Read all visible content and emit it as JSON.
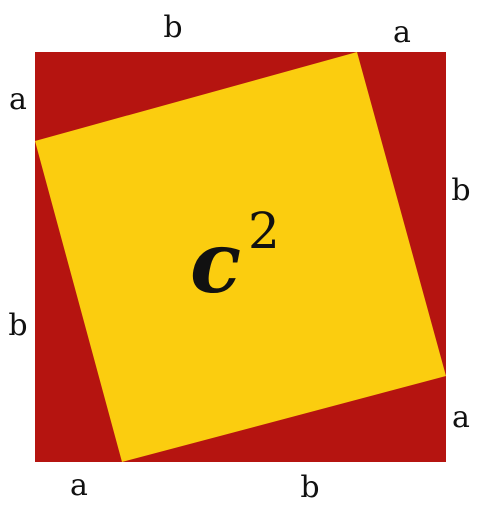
{
  "colors": {
    "outer_square": "#B51410",
    "inner_square": "#FBCD0F",
    "text": "#111111"
  },
  "labels": {
    "top_b": "b",
    "top_a": "a",
    "right_b": "b",
    "right_a": "a",
    "bottom_a": "a",
    "bottom_b": "b",
    "left_a": "a",
    "left_b": "b"
  },
  "area": {
    "variable": "c",
    "exponent": "2"
  }
}
